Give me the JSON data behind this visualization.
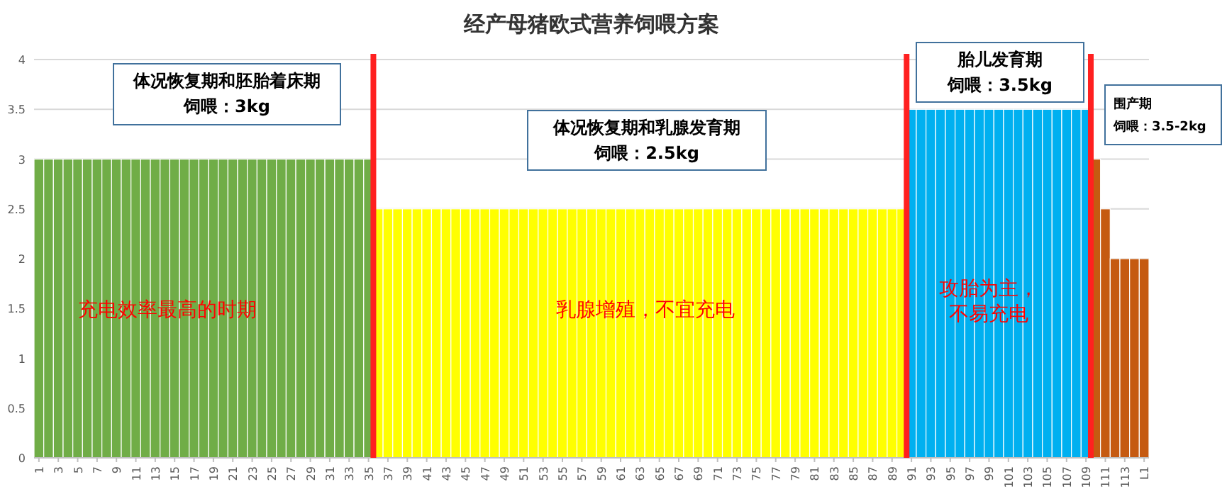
{
  "chart_data": {
    "type": "bar",
    "title": "经产母猪欧式营养饲喂方案",
    "x": [
      1,
      2,
      3,
      4,
      5,
      6,
      7,
      8,
      9,
      10,
      11,
      12,
      13,
      14,
      15,
      16,
      17,
      18,
      19,
      20,
      21,
      22,
      23,
      24,
      25,
      26,
      27,
      28,
      29,
      30,
      31,
      32,
      33,
      34,
      35,
      36,
      37,
      38,
      39,
      40,
      41,
      42,
      43,
      44,
      45,
      46,
      47,
      48,
      49,
      50,
      51,
      52,
      53,
      54,
      55,
      56,
      57,
      58,
      59,
      60,
      61,
      62,
      63,
      64,
      65,
      66,
      67,
      68,
      69,
      70,
      71,
      72,
      73,
      74,
      75,
      76,
      77,
      78,
      79,
      80,
      81,
      82,
      83,
      84,
      85,
      86,
      87,
      88,
      89,
      90,
      91,
      92,
      93,
      94,
      95,
      96,
      97,
      98,
      99,
      100,
      101,
      102,
      103,
      104,
      105,
      106,
      107,
      108,
      109,
      110,
      111,
      112,
      113,
      114,
      115
    ],
    "values": [
      3,
      3,
      3,
      3,
      3,
      3,
      3,
      3,
      3,
      3,
      3,
      3,
      3,
      3,
      3,
      3,
      3,
      3,
      3,
      3,
      3,
      3,
      3,
      3,
      3,
      3,
      3,
      3,
      3,
      3,
      3,
      3,
      3,
      3,
      3,
      2.5,
      2.5,
      2.5,
      2.5,
      2.5,
      2.5,
      2.5,
      2.5,
      2.5,
      2.5,
      2.5,
      2.5,
      2.5,
      2.5,
      2.5,
      2.5,
      2.5,
      2.5,
      2.5,
      2.5,
      2.5,
      2.5,
      2.5,
      2.5,
      2.5,
      2.5,
      2.5,
      2.5,
      2.5,
      2.5,
      2.5,
      2.5,
      2.5,
      2.5,
      2.5,
      2.5,
      2.5,
      2.5,
      2.5,
      2.5,
      2.5,
      2.5,
      2.5,
      2.5,
      2.5,
      2.5,
      2.5,
      2.5,
      2.5,
      2.5,
      2.5,
      2.5,
      2.5,
      2.5,
      2.5,
      3.5,
      3.5,
      3.5,
      3.5,
      3.5,
      3.5,
      3.5,
      3.5,
      3.5,
      3.5,
      3.5,
      3.5,
      3.5,
      3.5,
      3.5,
      3.5,
      3.5,
      3.5,
      3.5,
      3,
      2.5,
      2,
      2,
      2,
      2
    ],
    "colors": [
      "#70ad47",
      "#70ad47",
      "#70ad47",
      "#70ad47",
      "#70ad47",
      "#70ad47",
      "#70ad47",
      "#70ad47",
      "#70ad47",
      "#70ad47",
      "#70ad47",
      "#70ad47",
      "#70ad47",
      "#70ad47",
      "#70ad47",
      "#70ad47",
      "#70ad47",
      "#70ad47",
      "#70ad47",
      "#70ad47",
      "#70ad47",
      "#70ad47",
      "#70ad47",
      "#70ad47",
      "#70ad47",
      "#70ad47",
      "#70ad47",
      "#70ad47",
      "#70ad47",
      "#70ad47",
      "#70ad47",
      "#70ad47",
      "#70ad47",
      "#70ad47",
      "#70ad47",
      "#ffff00",
      "#ffff00",
      "#ffff00",
      "#ffff00",
      "#ffff00",
      "#ffff00",
      "#ffff00",
      "#ffff00",
      "#ffff00",
      "#ffff00",
      "#ffff00",
      "#ffff00",
      "#ffff00",
      "#ffff00",
      "#ffff00",
      "#ffff00",
      "#ffff00",
      "#ffff00",
      "#ffff00",
      "#ffff00",
      "#ffff00",
      "#ffff00",
      "#ffff00",
      "#ffff00",
      "#ffff00",
      "#ffff00",
      "#ffff00",
      "#ffff00",
      "#ffff00",
      "#ffff00",
      "#ffff00",
      "#ffff00",
      "#ffff00",
      "#ffff00",
      "#ffff00",
      "#ffff00",
      "#ffff00",
      "#ffff00",
      "#ffff00",
      "#ffff00",
      "#ffff00",
      "#ffff00",
      "#ffff00",
      "#ffff00",
      "#ffff00",
      "#ffff00",
      "#ffff00",
      "#ffff00",
      "#ffff00",
      "#ffff00",
      "#ffff00",
      "#ffff00",
      "#ffff00",
      "#ffff00",
      "#ffff00",
      "#00b0f0",
      "#00b0f0",
      "#00b0f0",
      "#00b0f0",
      "#00b0f0",
      "#00b0f0",
      "#00b0f0",
      "#00b0f0",
      "#00b0f0",
      "#00b0f0",
      "#00b0f0",
      "#00b0f0",
      "#00b0f0",
      "#00b0f0",
      "#00b0f0",
      "#00b0f0",
      "#00b0f0",
      "#00b0f0",
      "#00b0f0",
      "#c55a11",
      "#c55a11",
      "#c55a11",
      "#c55a11",
      "#c55a11",
      "#c55a11"
    ],
    "xlim": [
      0.5,
      115.5
    ],
    "xticks": [
      1,
      3,
      5,
      7,
      9,
      11,
      13,
      15,
      17,
      19,
      21,
      23,
      25,
      27,
      29,
      31,
      33,
      35,
      37,
      39,
      41,
      43,
      45,
      47,
      49,
      51,
      53,
      55,
      57,
      59,
      61,
      63,
      65,
      67,
      69,
      71,
      73,
      75,
      77,
      79,
      81,
      83,
      85,
      87,
      89,
      91,
      93,
      95,
      97,
      99,
      101,
      103,
      105,
      107,
      109,
      111,
      113,
      {
        "value": 115,
        "label": "L1"
      }
    ],
    "ylim": [
      0,
      4
    ],
    "yticks": [
      0,
      0.5,
      1,
      1.5,
      2,
      2.5,
      3,
      3.5,
      4
    ],
    "grid": "y",
    "ref_lines": [
      {
        "axis": "x",
        "value": 35.5,
        "color": "#ff2020"
      },
      {
        "axis": "x",
        "value": 90.5,
        "color": "#ff2020"
      },
      {
        "axis": "x",
        "value": 109.5,
        "color": "#ff2020"
      }
    ],
    "annotations": [
      "体况恢复期和胚胎着床期",
      "饲喂：3kg",
      "体况恢复期和乳腺发育期",
      "饲喂：2.5kg",
      "胎儿发育期",
      "饲喂：3.5kg",
      "围产期",
      "饲喂：3.5-2kg",
      "充电效率最高的时期",
      "乳腺增殖，不宜充电",
      "攻胎为主，",
      "不易充电"
    ]
  }
}
